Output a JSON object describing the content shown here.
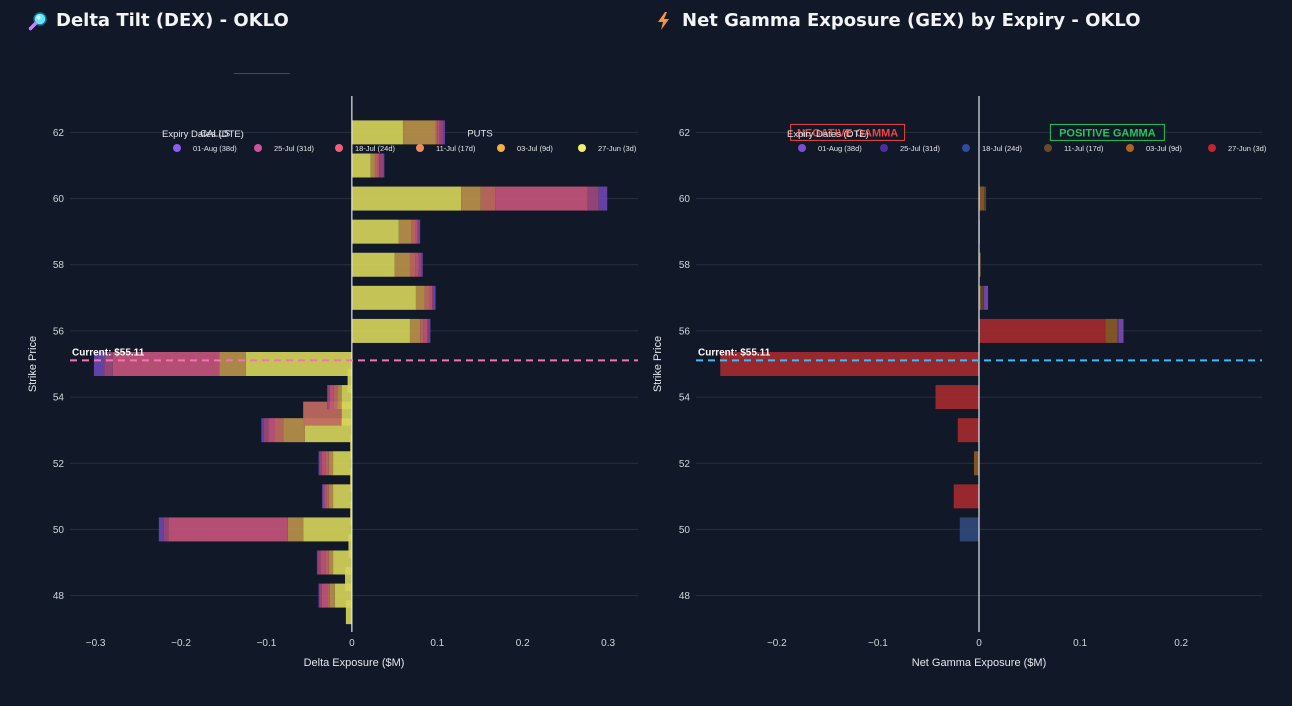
{
  "titles": {
    "left": "Delta Tilt (DEX) - OKLO",
    "right": "Net Gamma Exposure (GEX) by Expiry - OKLO"
  },
  "icons": {
    "left": "magnifier-icon",
    "right": "lightning-icon"
  },
  "current_label": "Current: $55.11",
  "legend_title": "Expiry Dates (DTE)",
  "chart_data": [
    {
      "type": "bar",
      "orientation": "horizontal",
      "barmode": "stack",
      "title": "Delta Tilt (DEX) - OKLO",
      "xlabel": "Delta Exposure ($M)",
      "ylabel": "Strike Price",
      "xlim": [
        -0.33,
        0.335
      ],
      "ylim": [
        46.9,
        63.1
      ],
      "xticks": [
        -0.3,
        -0.2,
        -0.1,
        0,
        0.1,
        0.2,
        0.3
      ],
      "xtick_labels": [
        "−0.3",
        "−0.2",
        "−0.1",
        "0",
        "0.1",
        "0.2",
        "0.3"
      ],
      "yticks": [
        48,
        50,
        52,
        54,
        56,
        58,
        60,
        62
      ],
      "current_price": 55.11,
      "current_color": "#f472b6",
      "annotations": [
        {
          "text": "CALLS",
          "x": -0.16,
          "y": 62
        },
        {
          "text": "PUTS",
          "x": 0.15,
          "y": 62
        }
      ],
      "strikes": [
        47.5,
        48,
        48.5,
        49,
        49.5,
        50,
        50.5,
        51,
        51.5,
        52,
        52.5,
        53,
        53.5,
        54,
        54.5,
        55,
        56,
        57,
        58,
        59,
        60,
        61,
        62
      ],
      "series": [
        {
          "name": "27-Jun (3d)",
          "color": "#d4d45a",
          "values": [
            -0.007,
            -0.02,
            -0.008,
            -0.022,
            -0.004,
            -0.057,
            -0.002,
            -0.022,
            -0.002,
            -0.022,
            -0.002,
            -0.055,
            -0.012,
            -0.012,
            -0.005,
            -0.124,
            0.068,
            0.075,
            0.05,
            0.055,
            0.128,
            0.022,
            0.06
          ]
        },
        {
          "name": "03-Jul (9d)",
          "color": "#b8914a",
          "values": [
            0,
            -0.006,
            0,
            -0.005,
            0,
            -0.018,
            0,
            -0.005,
            0,
            -0.005,
            0,
            -0.025,
            0,
            -0.005,
            0,
            -0.031,
            0.012,
            0.01,
            0.018,
            0.015,
            0.023,
            0.005,
            0.038
          ]
        },
        {
          "name": "11-Jul (17d)",
          "color": "#c06a5e",
          "values": [
            0,
            -0.003,
            0,
            -0.004,
            0,
            0,
            0,
            -0.003,
            0,
            -0.004,
            0,
            -0.01,
            -0.045,
            -0.004,
            0,
            0,
            0.004,
            0.006,
            0.006,
            0.005,
            0.017,
            0.003,
            0.002
          ]
        },
        {
          "name": "18-Jul (24d)",
          "color": "#c2557a",
          "values": [
            0,
            -0.006,
            0,
            -0.006,
            0,
            -0.14,
            0,
            -0.002,
            0,
            -0.004,
            0,
            -0.008,
            0,
            -0.005,
            0,
            -0.125,
            0.004,
            0.003,
            0.004,
            0.002,
            0.108,
            0.002,
            0.003
          ]
        },
        {
          "name": "25-Jul (31d)",
          "color": "#9b4a7c",
          "values": [
            0,
            -0.003,
            0,
            -0.003,
            0,
            -0.005,
            0,
            -0.002,
            0,
            -0.003,
            0,
            -0.005,
            0,
            -0.002,
            0,
            -0.01,
            0.002,
            0.002,
            0.003,
            0.001,
            0.013,
            0.005,
            0.004
          ]
        },
        {
          "name": "01-Aug (38d)",
          "color": "#6b47b0",
          "values": [
            0,
            -0.001,
            0,
            -0.001,
            0,
            -0.006,
            0,
            -0.001,
            0,
            -0.001,
            0,
            -0.003,
            0,
            -0.001,
            0,
            -0.012,
            0.002,
            0.002,
            0.002,
            0.002,
            0.01,
            0.001,
            0.002
          ]
        }
      ]
    },
    {
      "type": "bar",
      "orientation": "horizontal",
      "barmode": "stack",
      "title": "Net Gamma Exposure (GEX) by Expiry - OKLO",
      "xlabel": "Net Gamma Exposure ($M)",
      "ylabel": "Strike Price",
      "xlim": [
        -0.28,
        0.28
      ],
      "ylim": [
        46.9,
        63.1
      ],
      "xticks": [
        -0.2,
        -0.1,
        0,
        0.1,
        0.2
      ],
      "xtick_labels": [
        "−0.2",
        "−0.1",
        "0",
        "0.1",
        "0.2"
      ],
      "yticks": [
        48,
        50,
        52,
        54,
        56,
        58,
        60,
        62
      ],
      "current_price": 55.11,
      "current_color": "#38bdf8",
      "annotations": [
        {
          "text": "NEGATIVE GAMMA",
          "x": -0.13,
          "y": 62,
          "color": "#ef4444"
        },
        {
          "text": "POSITIVE GAMMA",
          "x": 0.127,
          "y": 62,
          "color": "#22c55e"
        }
      ],
      "strikes": [
        50,
        51,
        52,
        53,
        54,
        55,
        56,
        57,
        58,
        59,
        60
      ],
      "series": [
        {
          "name": "27-Jun (3d)",
          "color": "#a32a2f",
          "values": [
            0,
            -0.025,
            0,
            -0.021,
            -0.043,
            -0.256,
            0.125,
            0,
            0,
            0,
            0
          ]
        },
        {
          "name": "03-Jul (9d)",
          "color": "#8a5a24",
          "values": [
            0,
            0,
            -0.005,
            0,
            0,
            0,
            0.012,
            0.002,
            0.001,
            0,
            0.005
          ]
        },
        {
          "name": "11-Jul (17d)",
          "color": "#5e4a2c",
          "values": [
            0,
            0,
            0,
            0,
            0,
            0,
            0,
            0.002,
            0.001,
            0,
            0.002
          ]
        },
        {
          "name": "18-Jul (24d)",
          "color": "#2f4a7c",
          "values": [
            -0.019,
            0,
            0,
            0,
            0,
            0,
            0,
            0,
            0,
            0.001,
            0
          ]
        },
        {
          "name": "25-Jul (31d)",
          "color": "#4a3a8a",
          "values": [
            0,
            0,
            0,
            0,
            0,
            0,
            0.001,
            0.001,
            0,
            0,
            0
          ]
        },
        {
          "name": "01-Aug (38d)",
          "color": "#7a4ab0",
          "values": [
            0,
            0,
            0,
            0,
            0,
            0,
            0.005,
            0.004,
            0,
            0,
            0
          ]
        }
      ]
    }
  ],
  "legends": [
    {
      "items": [
        {
          "label": "01-Aug (38d)",
          "color": "#8b5cf6"
        },
        {
          "label": "25-Jul (31d)",
          "color": "#d04fa0"
        },
        {
          "label": "18-Jul (24d)",
          "color": "#f0607a"
        },
        {
          "label": "11-Jul (17d)",
          "color": "#f08a60"
        },
        {
          "label": "03-Jul (9d)",
          "color": "#f4b040"
        },
        {
          "label": "27-Jun (3d)",
          "color": "#f2f06a"
        }
      ]
    },
    {
      "items": [
        {
          "label": "01-Aug (38d)",
          "color": "#7c4dd0"
        },
        {
          "label": "25-Jul (31d)",
          "color": "#4b2fa0"
        },
        {
          "label": "18-Jul (24d)",
          "color": "#2f4aa0"
        },
        {
          "label": "11-Jul (17d)",
          "color": "#6b4a2a"
        },
        {
          "label": "03-Jul (9d)",
          "color": "#b0651e"
        },
        {
          "label": "27-Jun (3d)",
          "color": "#c0262d"
        }
      ]
    }
  ]
}
